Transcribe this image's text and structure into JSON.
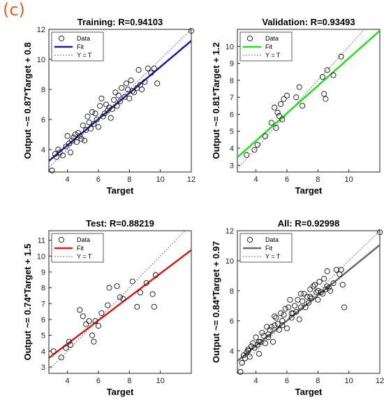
{
  "figure_label": "(c)",
  "chart_data": [
    {
      "type": "scatter",
      "title": "Training: R=0.94103",
      "xlabel": "Target",
      "ylabel": "Output ~= 0.87*Target + 0.8",
      "xlim": [
        2.8,
        12.0
      ],
      "ylim": [
        2.5,
        12.0
      ],
      "xticks": [
        4,
        6,
        8,
        10,
        12
      ],
      "yticks": [
        4,
        6,
        8,
        10,
        12
      ],
      "fit": {
        "slope": 0.87,
        "intercept": 0.8,
        "color": "#1a1aa6"
      },
      "legend": {
        "data": "Data",
        "fit": "Fit",
        "identity": "Y = T",
        "position": "top-left"
      },
      "x": [
        3.0,
        3.2,
        3.3,
        3.5,
        3.7,
        3.9,
        4.0,
        4.2,
        4.3,
        4.5,
        4.6,
        4.7,
        4.8,
        5.0,
        5.1,
        5.2,
        5.3,
        5.5,
        5.6,
        5.7,
        5.8,
        6.0,
        6.1,
        6.2,
        6.3,
        6.5,
        6.6,
        6.8,
        7.0,
        7.1,
        7.2,
        7.4,
        7.5,
        7.7,
        7.8,
        8.0,
        8.1,
        8.3,
        8.5,
        8.6,
        8.8,
        9.0,
        9.2,
        9.4,
        9.6,
        9.8,
        12.0,
        3.4,
        4.1,
        4.4,
        5.4,
        5.9,
        6.4,
        6.9,
        7.3,
        7.9,
        8.2,
        8.7,
        4.9,
        6.7
      ],
      "y": [
        2.6,
        3.7,
        3.5,
        3.8,
        3.6,
        4.2,
        4.9,
        3.8,
        4.6,
        5.0,
        4.5,
        5.1,
        4.9,
        5.6,
        4.6,
        5.3,
        6.2,
        5.4,
        6.5,
        5.7,
        6.4,
        5.5,
        6.9,
        7.4,
        6.2,
        7.0,
        6.6,
        6.1,
        7.3,
        7.8,
        6.9,
        7.2,
        8.1,
        7.5,
        8.4,
        7.4,
        8.6,
        7.8,
        8.1,
        9.3,
        8.0,
        8.5,
        9.4,
        9.1,
        9.4,
        8.4,
        11.9,
        4.0,
        4.4,
        4.8,
        5.8,
        6.0,
        6.4,
        6.7,
        7.6,
        8.0,
        7.9,
        8.3,
        4.7,
        6.8
      ]
    },
    {
      "type": "scatter",
      "title": "Validation: R=0.93493",
      "xlabel": "Target",
      "ylabel": "Output ~= 0.81*Target + 1.2",
      "xlim": [
        2.8,
        12.0
      ],
      "ylim": [
        2.6,
        11.0
      ],
      "xticks": [
        4,
        6,
        8,
        10
      ],
      "yticks": [
        3,
        4,
        5,
        6,
        7,
        8,
        9,
        10
      ],
      "fit": {
        "slope": 0.81,
        "intercept": 1.2,
        "color": "#22e01a"
      },
      "legend": {
        "data": "Data",
        "fit": "Fit",
        "identity": "Y = T",
        "position": "top-left"
      },
      "x": [
        3.4,
        3.9,
        4.1,
        4.6,
        5.0,
        5.2,
        5.3,
        5.4,
        5.5,
        5.6,
        5.7,
        5.8,
        6.0,
        6.6,
        6.8,
        7.0,
        8.3,
        8.4,
        8.5,
        8.6,
        9.0,
        9.5
      ],
      "y": [
        3.6,
        3.9,
        4.2,
        4.7,
        5.5,
        6.4,
        5.2,
        6.1,
        5.9,
        6.6,
        5.7,
        6.9,
        7.1,
        7.0,
        7.6,
        6.5,
        8.2,
        7.2,
        6.9,
        8.6,
        8.3,
        9.4
      ]
    },
    {
      "type": "scatter",
      "title": "Test: R=0.88219",
      "xlabel": "Target",
      "ylabel": "Output ~= 0.74*Target + 1.5",
      "xlim": [
        2.8,
        12.0
      ],
      "ylim": [
        2.6,
        11.6
      ],
      "xticks": [
        4,
        6,
        8,
        10
      ],
      "yticks": [
        3,
        4,
        5,
        6,
        7,
        8,
        9,
        10,
        11
      ],
      "fit": {
        "slope": 0.74,
        "intercept": 1.5,
        "color": "#d81a1a"
      },
      "legend": {
        "data": "Data",
        "fit": "Fit",
        "identity": "Y = T",
        "position": "top-left"
      },
      "x": [
        3.1,
        3.6,
        3.9,
        4.1,
        4.2,
        4.8,
        5.0,
        5.2,
        5.4,
        5.6,
        5.7,
        5.8,
        6.0,
        6.2,
        6.6,
        6.7,
        7.2,
        7.4,
        7.6,
        8.2,
        8.5,
        8.7,
        9.1,
        9.5,
        9.6,
        9.7
      ],
      "y": [
        4.0,
        3.6,
        4.2,
        4.6,
        4.4,
        6.6,
        6.2,
        5.7,
        5.9,
        5.0,
        4.6,
        5.9,
        5.6,
        6.4,
        6.9,
        8.0,
        8.1,
        7.4,
        7.3,
        8.4,
        6.8,
        7.7,
        8.3,
        7.6,
        6.8,
        8.8
      ]
    },
    {
      "type": "scatter",
      "title": "All: R=0.92998",
      "xlabel": "Target",
      "ylabel": "Output ~= 0.84*Target + 0.97",
      "xlim": [
        2.8,
        12.0
      ],
      "ylim": [
        2.5,
        12.0
      ],
      "xticks": [
        4,
        6,
        8,
        10,
        12
      ],
      "yticks": [
        4,
        6,
        8,
        10,
        12
      ],
      "fit": {
        "slope": 0.84,
        "intercept": 0.97,
        "color": "#6a6a6a"
      },
      "legend": {
        "data": "Data",
        "fit": "Fit",
        "identity": "Y = T",
        "position": "top-left"
      },
      "x": [
        3.0,
        3.1,
        3.2,
        3.3,
        3.4,
        3.5,
        3.6,
        3.7,
        3.8,
        3.9,
        4.0,
        4.1,
        4.2,
        4.3,
        4.4,
        4.5,
        4.6,
        4.7,
        4.8,
        4.9,
        5.0,
        5.1,
        5.2,
        5.3,
        5.4,
        5.5,
        5.6,
        5.7,
        5.8,
        5.9,
        6.0,
        6.1,
        6.2,
        6.3,
        6.4,
        6.5,
        6.6,
        6.7,
        6.8,
        6.9,
        7.0,
        7.1,
        7.2,
        7.3,
        7.4,
        7.5,
        7.6,
        7.7,
        7.8,
        7.9,
        8.0,
        8.1,
        8.2,
        8.3,
        8.4,
        8.5,
        8.6,
        8.7,
        8.8,
        9.0,
        9.2,
        9.4,
        9.5,
        9.6,
        9.7,
        12.0,
        3.5,
        4.2,
        4.8,
        5.2,
        5.7,
        6.3,
        6.9,
        7.5,
        8.0,
        8.6
      ],
      "y": [
        2.6,
        3.2,
        3.7,
        3.5,
        3.9,
        4.1,
        3.6,
        4.3,
        4.5,
        4.2,
        4.9,
        4.4,
        3.8,
        4.6,
        5.2,
        5.0,
        4.5,
        5.6,
        4.9,
        5.4,
        5.6,
        4.6,
        6.3,
        6.2,
        5.8,
        5.4,
        6.5,
        5.7,
        6.4,
        6.8,
        5.5,
        6.9,
        7.4,
        6.2,
        6.5,
        7.0,
        6.6,
        7.4,
        6.1,
        7.8,
        7.3,
        7.8,
        6.9,
        7.6,
        7.2,
        8.1,
        7.5,
        8.3,
        8.4,
        7.9,
        7.4,
        8.6,
        7.9,
        7.8,
        8.8,
        8.1,
        9.3,
        8.2,
        8.0,
        8.5,
        9.4,
        9.1,
        9.4,
        8.4,
        6.9,
        11.9,
        4.0,
        4.6,
        5.1,
        5.7,
        6.0,
        6.5,
        6.9,
        7.6,
        8.0,
        8.3
      ]
    }
  ]
}
